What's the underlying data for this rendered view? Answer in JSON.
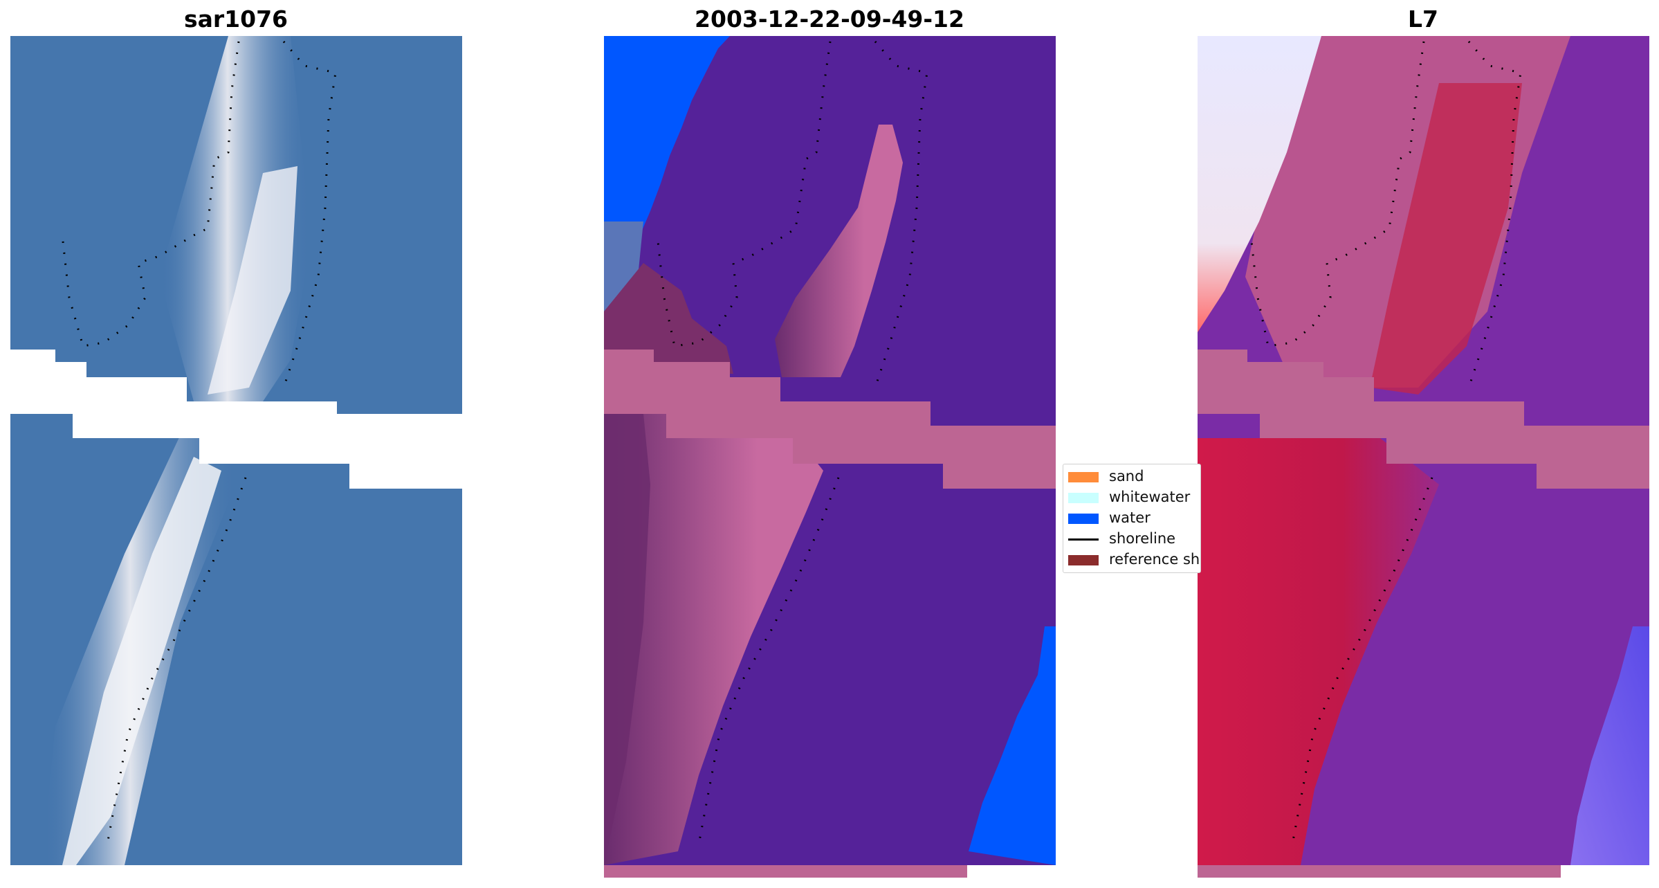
{
  "panels": {
    "left_title": "sar1076",
    "center_title": "2003-12-22-09-49-12",
    "right_title": "L7"
  },
  "legend": {
    "items": [
      {
        "label": "sand",
        "color": "#ff8c3a",
        "kind": "patch"
      },
      {
        "label": "whitewater",
        "color": "#c9ffff",
        "kind": "patch"
      },
      {
        "label": "water",
        "color": "#0057ff",
        "kind": "patch"
      },
      {
        "label": "shoreline",
        "color": "#000000",
        "kind": "line"
      },
      {
        "label": "reference sh",
        "color": "#8b2c2c",
        "kind": "patch"
      }
    ]
  },
  "colors": {
    "land_mask": "#bd6593",
    "class_land": "#552299",
    "class_water": "#0057ff",
    "rgb_background": "#3e70ab",
    "rgb_sand": "#e9eaf0",
    "ndwi_land": "#c0184a",
    "ndwi_water": "#7a2ca6"
  }
}
